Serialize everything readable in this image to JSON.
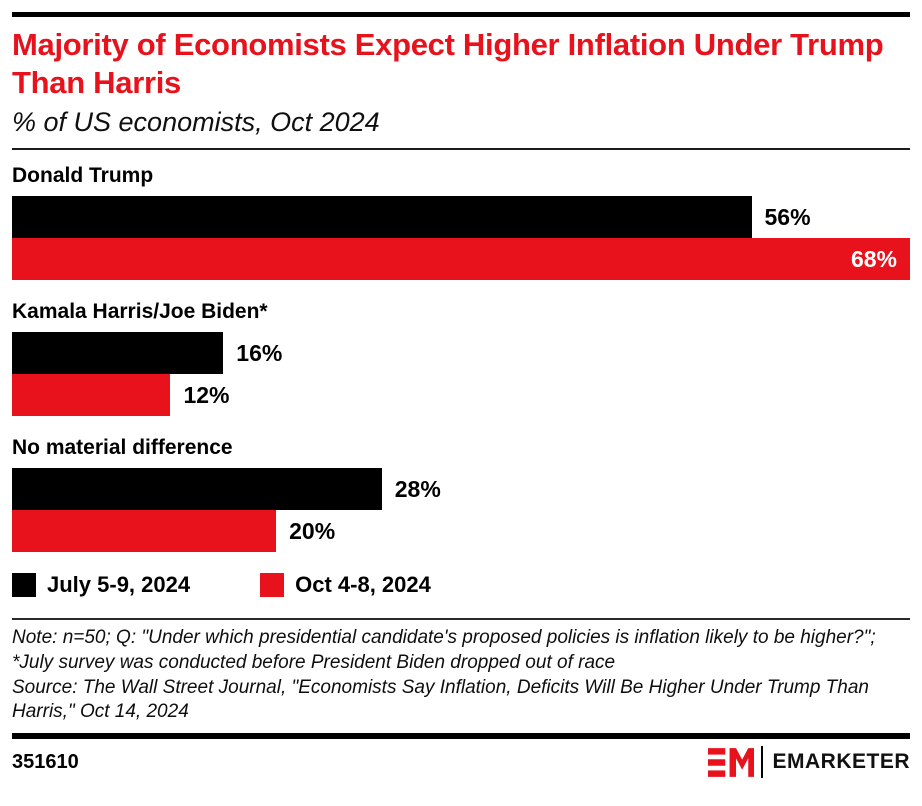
{
  "header": {
    "title": "Majority of Economists Expect Higher Inflation Under Trump Than Harris",
    "subtitle": "% of US economists, Oct 2024"
  },
  "chart_data": {
    "type": "bar",
    "orientation": "horizontal",
    "title": "Majority of Economists Expect Higher Inflation Under Trump Than Harris",
    "subtitle": "% of US economists, Oct 2024",
    "categories": [
      "Donald Trump",
      "Kamala Harris/Joe Biden*",
      "No material difference"
    ],
    "series": [
      {
        "name": "July 5-9, 2024",
        "color": "#000000",
        "values": [
          56,
          16,
          28
        ]
      },
      {
        "name": "Oct 4-8, 2024",
        "color": "#e8121c",
        "values": [
          68,
          12,
          20
        ]
      }
    ],
    "value_suffix": "%",
    "xmax": 68,
    "grid": false,
    "legend_position": "bottom",
    "value_labels": "end-of-bar; shown inside bar in white when bar is at maximum width"
  },
  "notes": {
    "note": "Note: n=50; Q: \"Under which presidential candidate's proposed policies is inflation likely to be higher?\"; *July survey was conducted before President Biden dropped out of race",
    "source": "Source: The Wall Street Journal, \"Economists Say Inflation, Deficits Will Be Higher Under Trump Than Harris,\" Oct 14, 2024"
  },
  "footer": {
    "chart_id": "351610",
    "logo_monogram": "EM",
    "brand": "EMARKETER"
  },
  "colors": {
    "accent_red": "#e8121c",
    "bar_black": "#000000",
    "background": "#ffffff"
  }
}
